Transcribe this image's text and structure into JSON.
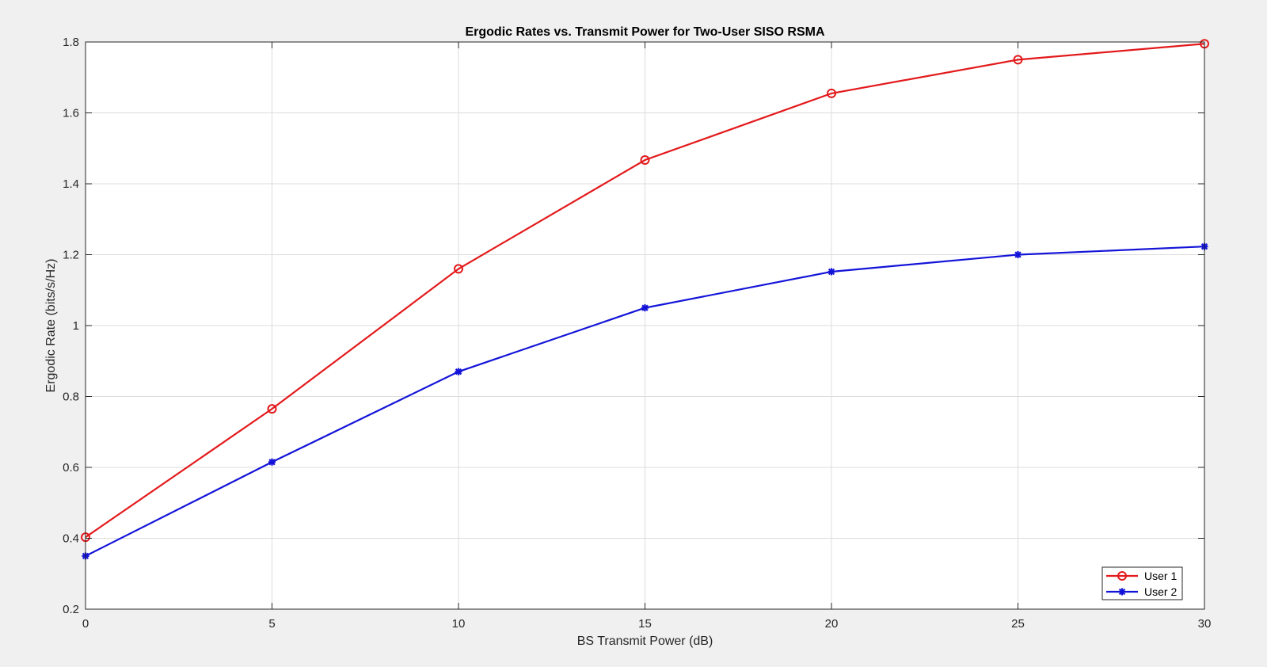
{
  "chart_data": {
    "type": "line",
    "title": "Ergodic Rates vs. Transmit Power for Two-User SISO RSMA",
    "xlabel": "BS Transmit Power (dB)",
    "ylabel": "Ergodic Rate (bits/s/Hz)",
    "x": [
      0,
      5,
      10,
      15,
      20,
      25,
      30
    ],
    "xlim": [
      0,
      30
    ],
    "ylim": [
      0.2,
      1.8
    ],
    "xticks": [
      0,
      5,
      10,
      15,
      20,
      25,
      30
    ],
    "yticks": [
      0.2,
      0.4,
      0.6,
      0.8,
      1,
      1.2,
      1.4,
      1.6,
      1.8
    ],
    "xtick_labels": [
      "0",
      "5",
      "10",
      "15",
      "20",
      "25",
      "30"
    ],
    "ytick_labels": [
      "0.2",
      "0.4",
      "0.6",
      "0.8",
      "1",
      "1.2",
      "1.4",
      "1.6",
      "1.8"
    ],
    "grid": true,
    "legend_position": "bottom-right",
    "series": [
      {
        "name": "User 1",
        "color": "#e31a1c",
        "marker": "circle",
        "values": [
          0.403,
          0.765,
          1.16,
          1.467,
          1.655,
          1.75,
          1.795
        ]
      },
      {
        "name": "User 2",
        "color": "#1414d9",
        "marker": "asterisk",
        "values": [
          0.35,
          0.615,
          0.87,
          1.05,
          1.152,
          1.2,
          1.223
        ]
      }
    ]
  }
}
